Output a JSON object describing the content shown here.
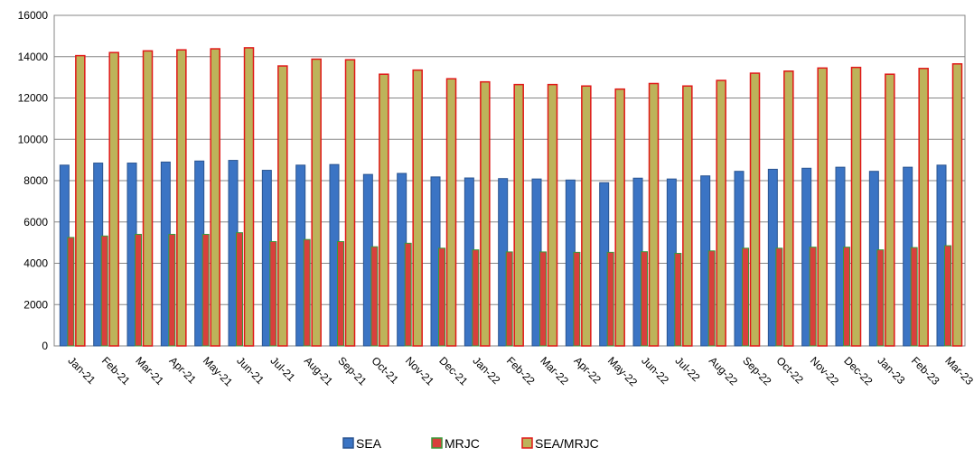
{
  "chart_data": {
    "type": "bar",
    "categories": [
      "Jan-21",
      "Feb-21",
      "Mar-21",
      "Apr-21",
      "May-21",
      "Jun-21",
      "Jul-21",
      "Aug-21",
      "Sep-21",
      "Oct-21",
      "Nov-21",
      "Dec-21",
      "Jan-22",
      "Feb-22",
      "Mar-22",
      "Apr-22",
      "May-22",
      "Jun-22",
      "Jul-22",
      "Aug-22",
      "Sep-22",
      "Oct-22",
      "Nov-22",
      "Dec-22",
      "Jan-23",
      "Feb-23",
      "Mar-23"
    ],
    "series": [
      {
        "name": "SEA",
        "color": "#3B74C4",
        "stroke": "#2A5490",
        "values": [
          8750,
          8850,
          8850,
          8900,
          8950,
          8980,
          8500,
          8750,
          8780,
          8300,
          8350,
          8180,
          8130,
          8100,
          8080,
          8030,
          7900,
          8120,
          8080,
          8230,
          8450,
          8550,
          8600,
          8650,
          8450,
          8650,
          8750
        ]
      },
      {
        "name": "MRJC",
        "color": "#D8403C",
        "stroke": "#3A9A3A",
        "values": [
          5250,
          5320,
          5400,
          5400,
          5400,
          5480,
          5050,
          5150,
          5050,
          4800,
          4970,
          4730,
          4650,
          4550,
          4550,
          4530,
          4530,
          4560,
          4480,
          4600,
          4730,
          4730,
          4780,
          4780,
          4650,
          4760,
          4850
        ]
      },
      {
        "name": "SEA/MRJC",
        "color": "#BDB35A",
        "stroke": "#E01818",
        "values": [
          14050,
          14200,
          14280,
          14330,
          14380,
          14430,
          13550,
          13880,
          13850,
          13150,
          13350,
          12930,
          12780,
          12650,
          12650,
          12580,
          12430,
          12700,
          12580,
          12850,
          13200,
          13300,
          13450,
          13480,
          13150,
          13430,
          13650
        ]
      }
    ],
    "ylim": [
      0,
      16000
    ],
    "yticks": [
      0,
      2000,
      4000,
      6000,
      8000,
      10000,
      12000,
      14000,
      16000
    ],
    "grid": true,
    "legend": "bottom-center",
    "title": "",
    "xlabel": "",
    "ylabel": ""
  }
}
